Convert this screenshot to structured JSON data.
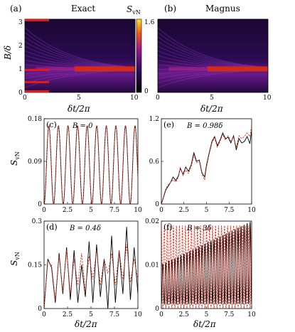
{
  "colors": {
    "exact": "#000000",
    "magnus": "#e0301e",
    "cb_low": "#000000",
    "cb_mid": "#7a1fa2",
    "cb_high": "#ffe033",
    "marker": "#e01a1a"
  },
  "heatmaps": {
    "a": {
      "panel": "(a)",
      "title": "Exact",
      "ticks_x": [
        "0",
        "5",
        "10"
      ],
      "ticks_y": [
        "0",
        "1",
        "2",
        "3"
      ],
      "xlabel": "δt/2π",
      "ylabel": "B/δ"
    },
    "b": {
      "panel": "(b)",
      "title": "Magnus",
      "ticks_x": [
        "0",
        "5",
        "10"
      ],
      "xlabel": "δt/2π"
    },
    "colorbar": {
      "label": "S_vN",
      "ticks": [
        "0",
        "1.6"
      ],
      "range": [
        0,
        1.6
      ]
    }
  },
  "chart_data": [
    {
      "type": "heatmap",
      "panel": "(a)",
      "title": "Exact",
      "xlabel": "δt/2π",
      "ylabel": "B/δ",
      "xlim": [
        0,
        10
      ],
      "ylim": [
        0,
        3.1
      ],
      "markers_B": [
        0,
        0.4,
        0.98,
        3
      ],
      "description_values": {
        "resonance_B": 0.98,
        "max_SvN": 1.6
      }
    },
    {
      "type": "heatmap",
      "panel": "(b)",
      "title": "Magnus",
      "xlabel": "δt/2π",
      "xlim": [
        0,
        10
      ],
      "ylim": [
        0,
        3.1
      ],
      "description_values": {
        "resonance_B": 0.98,
        "max_SvN": 1.6
      }
    },
    {
      "type": "line",
      "panel": "(c)",
      "annotation": "B = 0",
      "xlim": [
        0,
        10
      ],
      "ylim": [
        0,
        0.18
      ],
      "yticks": [
        "0",
        "0.09",
        "0.18"
      ],
      "xticks": [
        "0",
        "2.5",
        "5",
        "7.5",
        "10"
      ],
      "ylabel": "S_vN",
      "series": [
        {
          "style": "solid",
          "kind": "sin2",
          "amp": 0.165,
          "freq": 0.98
        },
        {
          "style": "dashed",
          "kind": "sin2",
          "amp": 0.165,
          "freq": 0.98
        }
      ]
    },
    {
      "type": "line",
      "panel": "(e)",
      "annotation": "B = 0.98δ",
      "xlim": [
        0,
        10
      ],
      "ylim": [
        0,
        1.2
      ],
      "yticks": [
        "0",
        "0.6",
        "1.2"
      ],
      "xticks": [
        "0",
        "2.5",
        "5",
        "7.5",
        "10"
      ],
      "series": [
        {
          "style": "solid",
          "x": [
            0,
            0.2,
            0.5,
            0.8,
            1.0,
            1.3,
            1.6,
            1.9,
            2.1,
            2.4,
            2.7,
            3.0,
            3.3,
            3.6,
            3.9,
            4.2,
            4.5,
            4.8,
            5.0,
            5.3,
            5.6,
            5.9,
            6.2,
            6.5,
            6.8,
            7.1,
            7.4,
            7.7,
            8.0,
            8.3,
            8.6,
            8.9,
            9.2,
            9.5,
            9.8,
            10
          ],
          "y": [
            0,
            0.08,
            0.2,
            0.26,
            0.3,
            0.38,
            0.33,
            0.4,
            0.5,
            0.42,
            0.52,
            0.46,
            0.55,
            0.72,
            0.6,
            0.62,
            0.44,
            0.38,
            0.55,
            0.72,
            0.88,
            0.95,
            0.82,
            0.9,
            1.0,
            0.92,
            0.94,
            0.86,
            0.96,
            0.76,
            0.92,
            0.86,
            0.88,
            0.95,
            0.85,
            1.03
          ]
        },
        {
          "style": "dashed",
          "x": [
            0,
            0.2,
            0.5,
            0.8,
            1.0,
            1.3,
            1.6,
            1.9,
            2.1,
            2.4,
            2.7,
            3.0,
            3.3,
            3.6,
            3.9,
            4.2,
            4.5,
            4.8,
            5.0,
            5.3,
            5.6,
            5.9,
            6.2,
            6.5,
            6.8,
            7.1,
            7.4,
            7.7,
            8.0,
            8.3,
            8.6,
            8.9,
            9.2,
            9.5,
            9.8,
            10
          ],
          "y": [
            0,
            0.09,
            0.22,
            0.28,
            0.3,
            0.34,
            0.31,
            0.38,
            0.52,
            0.4,
            0.48,
            0.43,
            0.52,
            0.69,
            0.58,
            0.6,
            0.42,
            0.34,
            0.52,
            0.7,
            0.86,
            0.93,
            0.8,
            0.88,
            0.98,
            0.9,
            0.96,
            0.88,
            0.94,
            0.8,
            0.96,
            0.92,
            0.95,
            1.0,
            0.95,
            1.1
          ]
        }
      ]
    },
    {
      "type": "line",
      "panel": "(d)",
      "annotation": "B = 0.4δ",
      "xlim": [
        0,
        10
      ],
      "ylim": [
        0,
        0.3
      ],
      "yticks": [
        "0",
        "0.15",
        "0.3"
      ],
      "xticks": [
        "0",
        "2.5",
        "5",
        "7.5",
        "10"
      ],
      "xlabel": "δt/2π",
      "ylabel": "S_vN",
      "series": [
        {
          "style": "solid",
          "x": [
            0,
            0.4,
            0.8,
            1.2,
            1.6,
            2.0,
            2.4,
            2.8,
            3.2,
            3.6,
            4.0,
            4.4,
            4.8,
            5.2,
            5.6,
            6.0,
            6.4,
            6.8,
            7.2,
            7.6,
            8.0,
            8.4,
            8.8,
            9.2,
            9.6,
            10
          ],
          "y": [
            0,
            0.17,
            0.14,
            0.02,
            0.19,
            0.05,
            0.21,
            0.03,
            0.2,
            0.02,
            0.15,
            0.04,
            0.23,
            0.02,
            0.22,
            0.04,
            0.17,
            0.0,
            0.25,
            0.02,
            0.2,
            0.05,
            0.28,
            0.03,
            0.21,
            0.05
          ]
        },
        {
          "style": "dashed",
          "x": [
            0,
            0.4,
            0.8,
            1.2,
            1.6,
            2.0,
            2.4,
            2.8,
            3.2,
            3.6,
            4.0,
            4.4,
            4.8,
            5.2,
            5.6,
            6.0,
            6.4,
            6.8,
            7.2,
            7.6,
            8.0,
            8.4,
            8.8,
            9.2,
            9.6,
            10
          ],
          "y": [
            0,
            0.16,
            0.15,
            0.03,
            0.18,
            0.06,
            0.2,
            0.05,
            0.17,
            0.08,
            0.19,
            0.06,
            0.18,
            0.1,
            0.2,
            0.08,
            0.17,
            0.12,
            0.19,
            0.08,
            0.2,
            0.1,
            0.22,
            0.09,
            0.17,
            0.1
          ]
        }
      ]
    },
    {
      "type": "line",
      "panel": "(f)",
      "annotation": "B = 3δ",
      "xlim": [
        0,
        10
      ],
      "ylim": [
        0,
        0.02
      ],
      "yticks": [
        "0",
        "0.01",
        "0.02"
      ],
      "xticks": [
        "0",
        "2.5",
        "5",
        "7.5",
        "10"
      ],
      "xlabel": "δt/2π",
      "series": [
        {
          "style": "solid",
          "kind": "fastosc",
          "amp_start": 0.009,
          "amp_end": 0.019,
          "freq": 3.0
        },
        {
          "style": "dashed",
          "kind": "fastosc",
          "amp_start": 0.009,
          "amp_end": 0.019,
          "freq": 3.0
        }
      ]
    }
  ],
  "panels": {
    "c": {
      "label": "(c)",
      "ann": "B = 0"
    },
    "e": {
      "label": "(e)",
      "ann": "B = 0.98δ"
    },
    "d": {
      "label": "(d)",
      "ann": "B = 0.4δ"
    },
    "f": {
      "label": "(f)",
      "ann": "B = 3δ"
    }
  }
}
